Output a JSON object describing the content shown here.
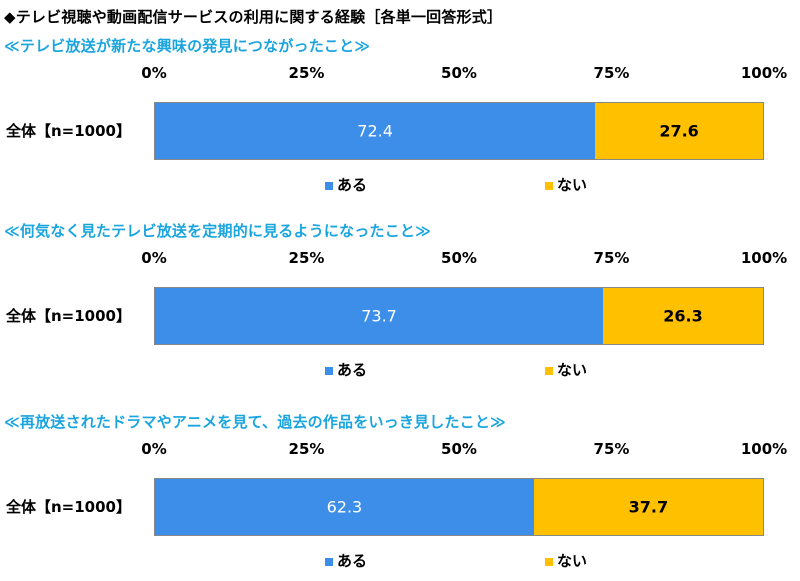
{
  "title": "◆テレビ視聴や動画配信サービスの利用に関する経験［各単一回答形式］",
  "chart_data": [
    {
      "type": "bar",
      "orientation": "horizontal-stacked-100",
      "title": "≪テレビ放送が新たな興味の発見につながったこと≫",
      "categories": [
        "全体【n=1000】"
      ],
      "series": [
        {
          "name": "ある",
          "color": "#3d8ee8",
          "values": [
            72.4
          ]
        },
        {
          "name": "ない",
          "color": "#ffc000",
          "values": [
            27.6
          ]
        }
      ],
      "xlim": [
        0,
        100
      ],
      "ticks": [
        "0%",
        "25%",
        "50%",
        "75%",
        "100%"
      ],
      "grid": true,
      "legend": "bottom"
    },
    {
      "type": "bar",
      "orientation": "horizontal-stacked-100",
      "title": "≪何気なく見たテレビ放送を定期的に見るようになったこと≫",
      "categories": [
        "全体【n=1000】"
      ],
      "series": [
        {
          "name": "ある",
          "color": "#3d8ee8",
          "values": [
            73.7
          ]
        },
        {
          "name": "ない",
          "color": "#ffc000",
          "values": [
            26.3
          ]
        }
      ],
      "xlim": [
        0,
        100
      ],
      "ticks": [
        "0%",
        "25%",
        "50%",
        "75%",
        "100%"
      ],
      "grid": true,
      "legend": "bottom"
    },
    {
      "type": "bar",
      "orientation": "horizontal-stacked-100",
      "title": "≪再放送されたドラマやアニメを見て、過去の作品をいっき見したこと≫",
      "categories": [
        "全体【n=1000】"
      ],
      "series": [
        {
          "name": "ある",
          "color": "#3d8ee8",
          "values": [
            62.3
          ]
        },
        {
          "name": "ない",
          "color": "#ffc000",
          "values": [
            37.7
          ]
        }
      ],
      "xlim": [
        0,
        100
      ],
      "ticks": [
        "0%",
        "25%",
        "50%",
        "75%",
        "100%"
      ],
      "grid": true,
      "legend": "bottom"
    }
  ]
}
